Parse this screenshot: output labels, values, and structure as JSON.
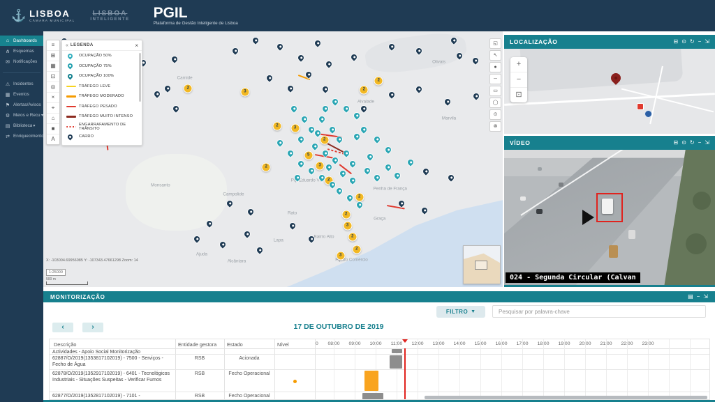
{
  "header": {
    "app_title": "PGIL",
    "app_subtitle": "Plataforma de Gestão Inteligente de Lisboa",
    "logo_lisboa": "LISBOA",
    "logo_lisboa_sub": "CÂMARA MUNICIPAL",
    "logo_inteligente_line1": "LISBOA",
    "logo_inteligente_line2": "INTELIGENTE"
  },
  "sidebar": {
    "items": [
      {
        "icon": "home",
        "label": "Dashboards",
        "active": true
      },
      {
        "icon": "schema",
        "label": "Esquemas"
      },
      {
        "icon": "mail",
        "label": "Notificações"
      },
      {
        "divider": true
      },
      {
        "icon": "warning",
        "label": "Incidentes"
      },
      {
        "icon": "calendar",
        "label": "Eventos"
      },
      {
        "icon": "megaphone",
        "label": "Alertas/Avisos"
      },
      {
        "icon": "gear",
        "label": "Meios e Recursos",
        "chevron": true
      },
      {
        "icon": "book",
        "label": "Biblioteca",
        "chevron": true
      },
      {
        "icon": "enrich",
        "label": "Enriquecimento"
      }
    ]
  },
  "colors": {
    "navy": "#1f3b54",
    "teal": "#17808e",
    "occupancy_pin": "#2aa6b4",
    "cluster": "#f2b824",
    "leve": "#f7d31e",
    "moderado": "#f59b00",
    "pesado": "#e03a2f",
    "intenso": "#8c2a1f",
    "engarrafamento": "#e03a2f",
    "bar_gray": "#8d8d8d",
    "bar_orange": "#f9a41f",
    "now_line": "#e0231e"
  },
  "map": {
    "toolbar_left": [
      "pan",
      "layers",
      "grid",
      "extent",
      "locate",
      "clear",
      "search",
      "home",
      "basemap",
      "labels"
    ],
    "toolbar_right": [
      "overview",
      "select",
      "point",
      "line",
      "polygon",
      "circle",
      "buffer",
      "erase"
    ],
    "legend": {
      "title": "LEGENDA",
      "items": [
        {
          "kind": "pin",
          "color": "#35b0bf",
          "label": "OCUPAÇÃO 50%"
        },
        {
          "kind": "pin",
          "color": "#21a0ae",
          "label": "OCUPAÇÃO 75%"
        },
        {
          "kind": "pin",
          "color": "#0f7f8d",
          "label": "OCUPAÇÃO 100%"
        },
        {
          "kind": "line",
          "color": "#f7d31e",
          "label": "TRÁFEGO LEVE"
        },
        {
          "kind": "line",
          "color": "#f59b00",
          "label": "TRÁFEGO MODERADO"
        },
        {
          "kind": "line",
          "color": "#e03a2f",
          "label": "TRÁFEGO PESADO"
        },
        {
          "kind": "line",
          "color": "#8c2a1f",
          "label": "TRÁFEGO MUITO INTENSO"
        },
        {
          "kind": "dotted",
          "color": "#e03a2f",
          "label": "ENGARRAFAMENTO DE TRÂNSITO"
        },
        {
          "kind": "pin",
          "color": "#1f3b54",
          "label": "CARRO"
        }
      ]
    },
    "labels": [
      [
        "Carnide",
        30.8,
        18.2
      ],
      [
        "Benfica",
        17.9,
        30.8
      ],
      [
        "Olivais",
        86.1,
        12.1
      ],
      [
        "Marvila",
        88.3,
        34.0
      ],
      [
        "Alvalade",
        70.2,
        27.6
      ],
      [
        "Monsanto",
        25.5,
        60.3
      ],
      [
        "Campolide",
        41.4,
        63.8
      ],
      [
        "Pq. Eduardo VII",
        57.3,
        58.2
      ],
      [
        "Penha de França",
        75.5,
        61.7
      ],
      [
        "Rato",
        54.2,
        71.0
      ],
      [
        "Graça",
        73.2,
        73.2
      ],
      [
        "Lapa",
        51.2,
        81.8
      ],
      [
        "Bairro Alto",
        61.1,
        80.4
      ],
      [
        "Ajuda",
        34.5,
        87.1
      ],
      [
        "Alcântara",
        42.1,
        89.8
      ],
      [
        "Pç. do Comércio",
        67.1,
        89.3
      ]
    ],
    "markers": [
      [
        "cluster",
        31.5,
        22.3,
        2
      ],
      [
        "cluster",
        43.9,
        23.6,
        3
      ],
      [
        "cluster",
        69.8,
        22.8,
        2
      ],
      [
        "cluster",
        73.0,
        19.3,
        2
      ],
      [
        "cluster",
        50.9,
        37.0,
        2
      ],
      [
        "cluster",
        54.8,
        37.8,
        3
      ],
      [
        "cluster",
        61.2,
        42.6,
        2
      ],
      [
        "cluster",
        57.7,
        48.5,
        5
      ],
      [
        "cluster",
        60.2,
        52.5,
        3
      ],
      [
        "cluster",
        62.1,
        58.2,
        2
      ],
      [
        "cluster",
        48.5,
        53.1,
        2
      ],
      [
        "cluster",
        68.8,
        64.9,
        2
      ],
      [
        "cluster",
        65.9,
        71.6,
        2
      ],
      [
        "cluster",
        66.2,
        75.9,
        3
      ],
      [
        "cluster",
        67.3,
        80.4,
        2
      ],
      [
        "cluster",
        68.2,
        85.3,
        2
      ],
      [
        "cluster",
        64.7,
        87.7,
        3
      ],
      [
        "car",
        28.5,
        12.1
      ],
      [
        "car",
        41.8,
        8.8
      ],
      [
        "car",
        46.2,
        4.6
      ],
      [
        "car",
        51.5,
        7.2
      ],
      [
        "car",
        56.1,
        11.5
      ],
      [
        "car",
        59.8,
        5.6
      ],
      [
        "car",
        62.1,
        13.9
      ],
      [
        "car",
        67.6,
        11.3
      ],
      [
        "car",
        75.9,
        7.2
      ],
      [
        "car",
        81.8,
        8.8
      ],
      [
        "car",
        89.4,
        4.6
      ],
      [
        "car",
        94.1,
        12.6
      ],
      [
        "car",
        27.0,
        23.3
      ],
      [
        "car",
        28.9,
        31.4
      ],
      [
        "car",
        49.2,
        19.3
      ],
      [
        "car",
        53.8,
        23.3
      ],
      [
        "car",
        57.7,
        18.0
      ],
      [
        "car",
        61.4,
        23.6
      ],
      [
        "car",
        69.7,
        31.4
      ],
      [
        "car",
        75.8,
        26.0
      ],
      [
        "car",
        81.8,
        23.6
      ],
      [
        "car",
        88.0,
        28.7
      ],
      [
        "car",
        94.2,
        26.3
      ],
      [
        "car",
        83.3,
        55.8
      ],
      [
        "car",
        88.8,
        58.2
      ],
      [
        "car",
        78.0,
        68.4
      ],
      [
        "car",
        83.0,
        71.0
      ],
      [
        "car",
        40.6,
        68.4
      ],
      [
        "car",
        45.2,
        71.6
      ],
      [
        "car",
        36.1,
        76.4
      ],
      [
        "car",
        33.5,
        82.3
      ],
      [
        "car",
        39.1,
        84.5
      ],
      [
        "car",
        44.4,
        80.4
      ],
      [
        "car",
        54.2,
        77.0
      ],
      [
        "car",
        90.6,
        10.7
      ],
      [
        "car",
        4.5,
        4.8
      ],
      [
        "car",
        7.0,
        14.2
      ],
      [
        "car",
        10.0,
        26.0
      ],
      [
        "car",
        16.1,
        19.6
      ],
      [
        "car",
        21.7,
        13.4
      ],
      [
        "car",
        24.7,
        25.5
      ],
      [
        "car",
        47.1,
        86.6
      ],
      [
        "car",
        58.3,
        82.3
      ],
      [
        "occ",
        54.5,
        31.4
      ],
      [
        "occ",
        56.8,
        35.4
      ],
      [
        "occ",
        58.3,
        39.4
      ],
      [
        "occ",
        60.6,
        35.4
      ],
      [
        "occ",
        62.9,
        39.4
      ],
      [
        "occ",
        56.1,
        43.4
      ],
      [
        "occ",
        59.1,
        46.1
      ],
      [
        "occ",
        61.4,
        48.8
      ],
      [
        "occ",
        63.6,
        51.5
      ],
      [
        "occ",
        65.9,
        48.8
      ],
      [
        "occ",
        58.3,
        55.5
      ],
      [
        "occ",
        60.6,
        58.2
      ],
      [
        "occ",
        62.9,
        60.9
      ],
      [
        "occ",
        65.2,
        56.8
      ],
      [
        "occ",
        67.4,
        59.5
      ],
      [
        "occ",
        56.1,
        52.8
      ],
      [
        "occ",
        53.8,
        48.8
      ],
      [
        "occ",
        51.5,
        44.8
      ],
      [
        "occ",
        69.7,
        39.4
      ],
      [
        "occ",
        72.7,
        43.4
      ],
      [
        "occ",
        75.0,
        47.5
      ],
      [
        "occ",
        68.2,
        42.1
      ],
      [
        "occ",
        64.4,
        43.4
      ],
      [
        "occ",
        59.8,
        40.8
      ],
      [
        "occ",
        67.4,
        52.8
      ],
      [
        "occ",
        70.5,
        55.5
      ],
      [
        "occ",
        72.7,
        58.2
      ],
      [
        "occ",
        75.0,
        54.2
      ],
      [
        "occ",
        66.7,
        66.2
      ],
      [
        "occ",
        68.9,
        68.9
      ],
      [
        "occ",
        64.4,
        63.5
      ],
      [
        "occ",
        62.1,
        54.2
      ],
      [
        "occ",
        71.2,
        50.1
      ],
      [
        "occ",
        77.0,
        57.6
      ],
      [
        "occ",
        80.0,
        52.3
      ],
      [
        "occ",
        68.2,
        34.0
      ],
      [
        "occ",
        65.9,
        31.4
      ],
      [
        "occ",
        63.6,
        28.7
      ],
      [
        "occ",
        61.4,
        31.4
      ],
      [
        "occ",
        55.3,
        58.2
      ]
    ],
    "traffic_lines": [
      [
        12.6,
        25.5,
        76,
        83,
        "pesado"
      ],
      [
        59.5,
        39.7,
        36,
        8,
        "pesado"
      ],
      [
        61.5,
        43.4,
        32,
        28,
        "intenso"
      ],
      [
        59.1,
        48.0,
        26,
        10,
        "pesado"
      ],
      [
        64.4,
        51.7,
        22,
        38,
        "pesado"
      ],
      [
        74.8,
        67.8,
        26,
        10,
        "pesado"
      ],
      [
        61.8,
        45.8,
        26,
        16,
        "engarrafamento"
      ],
      [
        55.5,
        16.9,
        18,
        20,
        "moderado"
      ]
    ],
    "coords": "X: -103004.69956085  Y: -107343.47661298  Zoom: 14",
    "scale": "1:25000",
    "scalebar": "500 m"
  },
  "panels": {
    "localizacao": {
      "title": "LOCALIZAÇÃO",
      "actions": [
        "print",
        "camera",
        "refresh",
        "minimize",
        "expand"
      ]
    },
    "video": {
      "title": "VÍDEO",
      "actions": [
        "print",
        "camera",
        "refresh",
        "minimize",
        "expand"
      ],
      "caption": "024 - Segunda Circular  (Calvan"
    },
    "monitor": {
      "title": "MONITORIZAÇÃO",
      "actions": [
        "export",
        "minimize",
        "expand"
      ],
      "filter_label": "FILTRO",
      "search_placeholder": "Pesquisar por palavra-chave",
      "date": "17 DE OUTUBRO DE 2019",
      "columns": [
        "Descrição",
        "Entidade gestora",
        "Estado",
        "Nível"
      ],
      "hours": [
        "0",
        "08:00",
        "09:00",
        "10:00",
        "11:00",
        "12:00",
        "13:00",
        "14:00",
        "15:00",
        "16:00",
        "17:00",
        "18:00",
        "19:00",
        "20:00",
        "21:00",
        "22:00",
        "23:00"
      ],
      "now": "11:22",
      "rows": [
        {
          "desc": "Actividades - Apoio Social Monitorização",
          "ent": "",
          "est": "",
          "partial": true
        },
        {
          "desc": "62887/O/2019(1353817102019) - 7500 - Serviços - Fecho de Água",
          "ent": "RSB",
          "est": "Acionada"
        },
        {
          "desc": "62878/O/2019(1352917102019) - 6401 - Tecnológicos Industriais - Situações Suspeitas - Verificar Fumos",
          "ent": "RSB",
          "est": "Fecho Operacional",
          "nivel": "#f59b00"
        },
        {
          "desc": "62877/O/2019(1352817102019) - 7101 -",
          "ent": "RSB",
          "est": "Fecho Operacional"
        }
      ],
      "bars": [
        {
          "row": 0,
          "from": "10:45",
          "to": "11:15",
          "color": "#8d8d8d"
        },
        {
          "row": 1,
          "from": "10:40",
          "to": "11:16",
          "color": "#8d8d8d"
        },
        {
          "row": 2,
          "from": "09:28",
          "to": "10:08",
          "color": "#f9a41f"
        },
        {
          "row": 3,
          "from": "09:22",
          "to": "10:22",
          "color": "#8d8d8d"
        }
      ]
    }
  }
}
